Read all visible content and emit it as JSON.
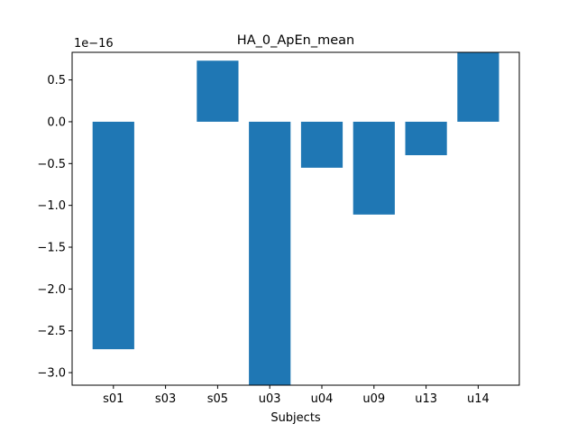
{
  "chart_data": {
    "type": "bar",
    "title": "HA_0_ApEn_mean",
    "xlabel": "Subjects",
    "ylabel": "",
    "offset_label": "1e−16",
    "scale_exponent": -16,
    "categories": [
      "s01",
      "s03",
      "s05",
      "u03",
      "u04",
      "u09",
      "u13",
      "u14"
    ],
    "values": [
      -2.72,
      0.0,
      0.73,
      -3.15,
      -0.55,
      -1.11,
      -0.4,
      0.83
    ],
    "ylim": [
      -3.15,
      0.83
    ],
    "yticks": [
      0.5,
      0.0,
      -0.5,
      -1.0,
      -1.5,
      -2.0,
      -2.5,
      -3.0
    ],
    "ytick_labels": [
      "0.5",
      "0.0",
      "−0.5",
      "−1.0",
      "−1.5",
      "−2.0",
      "−2.5",
      "−3.0"
    ],
    "grid": false,
    "bar_color": "#1f77b4"
  }
}
